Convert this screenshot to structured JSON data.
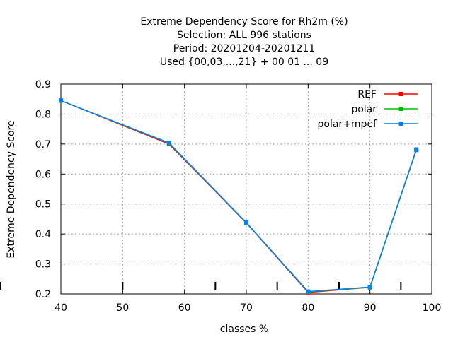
{
  "chart_data": {
    "type": "line",
    "title_lines": [
      "Extreme Dependency Score  for Rh2m (%)",
      "Selection: ALL    996 stations",
      "Period: 20201204-20201211",
      "Used {00,03,...,21} + 00 01 ... 09"
    ],
    "xlabel": "classes %",
    "ylabel": "Extreme Dependency Score",
    "xlim": [
      40,
      100
    ],
    "ylim": [
      0.2,
      0.9
    ],
    "x_ticks": [
      40,
      50,
      60,
      70,
      80,
      90,
      100
    ],
    "y_ticks": [
      0.2,
      0.3,
      0.4,
      0.5,
      0.6,
      0.7,
      0.8,
      0.9
    ],
    "x_tick_labels": [
      "40",
      "50",
      "60",
      "70",
      "80",
      "90",
      "100"
    ],
    "y_tick_labels": [
      "0.2",
      "0.3",
      "0.4",
      "0.5",
      "0.6",
      "0.7",
      "0.8",
      "0.9"
    ],
    "extra_bottom_marks": [
      40,
      50,
      65,
      75,
      85,
      95
    ],
    "grid": true,
    "legend_position": "top-right",
    "series": [
      {
        "name": "REF",
        "color": "#ff0000",
        "x": [
          40,
          57.5,
          70,
          80,
          90,
          97.5
        ],
        "y": [
          0.845,
          0.7,
          0.437,
          0.205,
          0.222,
          0.68
        ]
      },
      {
        "name": "polar",
        "color": "#00c000",
        "x": [
          40,
          57.5,
          70,
          80,
          90,
          97.5
        ],
        "y": [
          0.845,
          0.703,
          0.438,
          0.207,
          0.222,
          0.681
        ]
      },
      {
        "name": "polar+mpef",
        "color": "#0080ff",
        "x": [
          40,
          57.5,
          70,
          80,
          90,
          97.5
        ],
        "y": [
          0.845,
          0.704,
          0.438,
          0.208,
          0.223,
          0.682
        ]
      }
    ]
  }
}
